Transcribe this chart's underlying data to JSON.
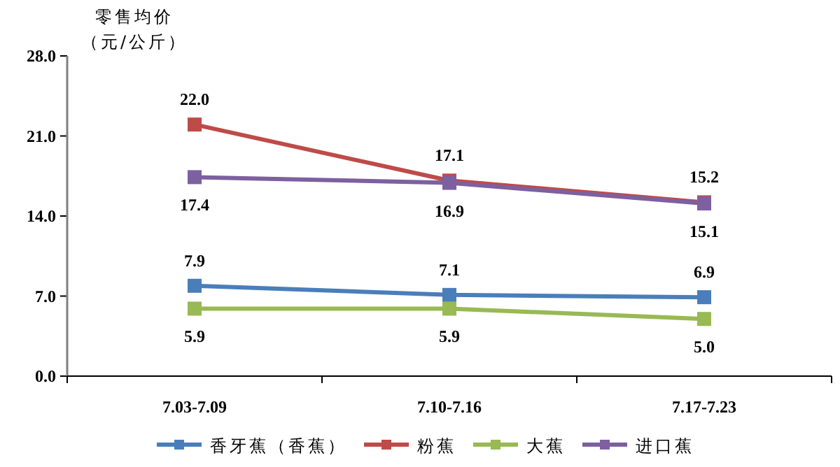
{
  "chart_data": {
    "type": "line",
    "ylabel": "零售均价（元/公斤）",
    "categories": [
      "7.03-7.09",
      "7.10-7.16",
      "7.17-7.23"
    ],
    "series": [
      {
        "name": "香牙蕉（香蕉）",
        "color": "#4a7ebb",
        "values": [
          7.9,
          7.1,
          6.9
        ],
        "value_labels": [
          "7.9",
          "7.1",
          "6.9"
        ]
      },
      {
        "name": "粉蕉",
        "color": "#be4b48",
        "values": [
          22.0,
          17.1,
          15.2
        ],
        "value_labels": [
          "22.0",
          "17.1",
          "15.2"
        ]
      },
      {
        "name": "大蕉",
        "color": "#98b954",
        "values": [
          5.9,
          5.9,
          5.0
        ],
        "value_labels": [
          "5.9",
          "5.9",
          "5.0"
        ]
      },
      {
        "name": "进口蕉",
        "color": "#7d60a0",
        "values": [
          17.4,
          16.9,
          15.1
        ],
        "value_labels": [
          "17.4",
          "16.9",
          "15.1"
        ]
      }
    ],
    "ylim": [
      0,
      28
    ],
    "yticks": [
      {
        "value": 0,
        "label": "0.0"
      },
      {
        "value": 7,
        "label": "7.0"
      },
      {
        "value": 14,
        "label": "14.0"
      },
      {
        "value": 21,
        "label": "21.0"
      },
      {
        "value": 28,
        "label": "28.0"
      }
    ],
    "grid": false,
    "legend": "bottom",
    "marker": "square",
    "line_style": "solid"
  }
}
